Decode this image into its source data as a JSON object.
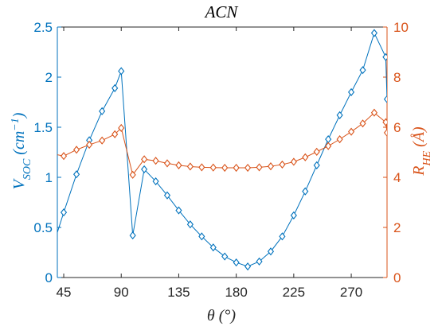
{
  "chart_data": {
    "type": "line",
    "title": "ACN",
    "xlabel": "θ (°)",
    "ylabel_left": "VSOC (cm−1)",
    "ylabel_right": "RHE (Å)",
    "xlim": [
      40,
      298
    ],
    "ylim_left": [
      0,
      2.5
    ],
    "ylim_right": [
      0,
      10
    ],
    "xticks": [
      45,
      90,
      135,
      180,
      225,
      270
    ],
    "yticks_left": [
      0,
      0.5,
      1,
      1.5,
      2,
      2.5
    ],
    "yticks_right": [
      0,
      2,
      4,
      6,
      8,
      10
    ],
    "grid": false,
    "legend": "none",
    "colors": {
      "left": "#0072bd",
      "right": "#d95319"
    },
    "x": [
      40,
      45,
      55,
      65,
      75,
      85,
      90,
      99,
      108,
      117,
      126,
      135,
      144,
      153,
      162,
      171,
      180,
      189,
      198,
      207,
      216,
      225,
      234,
      243,
      252,
      261,
      270,
      279,
      288,
      297,
      298
    ],
    "series": [
      {
        "axis": "left",
        "values": [
          0.45,
          0.65,
          1.03,
          1.37,
          1.66,
          1.89,
          2.06,
          0.42,
          1.08,
          0.96,
          0.82,
          0.67,
          0.53,
          0.41,
          0.3,
          0.21,
          0.15,
          0.11,
          0.16,
          0.26,
          0.41,
          0.62,
          0.86,
          1.12,
          1.38,
          1.62,
          1.85,
          2.07,
          2.44,
          2.2,
          1.78
        ],
        "markers": [
          false,
          true,
          true,
          true,
          true,
          true,
          true,
          true,
          true,
          true,
          true,
          true,
          true,
          true,
          true,
          true,
          true,
          true,
          true,
          true,
          true,
          true,
          true,
          true,
          true,
          true,
          true,
          true,
          true,
          true,
          true
        ]
      },
      {
        "axis": "right",
        "values": [
          4.9,
          4.85,
          5.1,
          5.3,
          5.47,
          5.72,
          5.97,
          4.1,
          4.72,
          4.66,
          4.56,
          4.48,
          4.43,
          4.4,
          4.39,
          4.38,
          4.38,
          4.38,
          4.4,
          4.44,
          4.51,
          4.62,
          4.8,
          5.02,
          5.25,
          5.52,
          5.82,
          6.15,
          6.58,
          6.2,
          5.78
        ],
        "markers": [
          false,
          true,
          true,
          true,
          true,
          true,
          true,
          true,
          true,
          true,
          true,
          true,
          true,
          true,
          true,
          true,
          true,
          true,
          true,
          true,
          true,
          true,
          true,
          true,
          true,
          true,
          true,
          true,
          true,
          true,
          true
        ]
      }
    ]
  }
}
